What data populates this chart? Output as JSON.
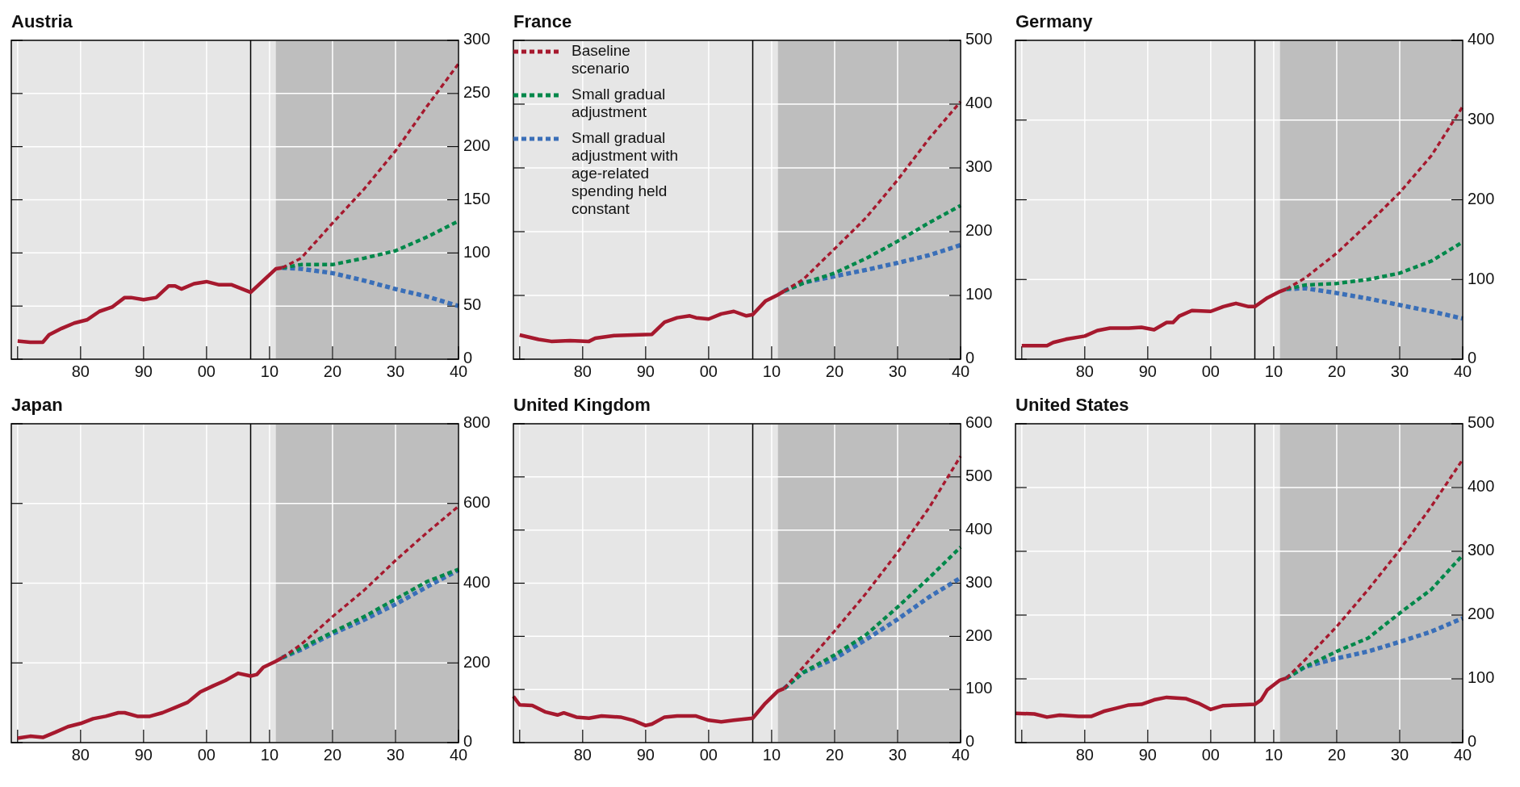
{
  "chart_data": [
    {
      "type": "line",
      "title": "Austria",
      "xlim": [
        1969,
        2040
      ],
      "xticks": [
        {
          "value": 1970,
          "label": null
        },
        {
          "value": 1980,
          "label": "80"
        },
        {
          "value": 1990,
          "label": "90"
        },
        {
          "value": 2000,
          "label": "00"
        },
        {
          "value": 2010,
          "label": "10"
        },
        {
          "value": 2020,
          "label": "20"
        },
        {
          "value": 2030,
          "label": "30"
        },
        {
          "value": 2040,
          "label": "40"
        }
      ],
      "ylim": [
        0,
        300
      ],
      "yticks": [
        0,
        50,
        100,
        150,
        200,
        250,
        300
      ],
      "grid": true,
      "legend": false,
      "bands": [
        {
          "axis": "x",
          "from": 2011,
          "to": 2040,
          "color": "#bebebe"
        }
      ],
      "ref_lines": [
        {
          "axis": "x",
          "value": 2007,
          "color": "#000000"
        }
      ],
      "series": [
        {
          "color": "#a6192e",
          "line_style": "solid",
          "x": [
            1970,
            1972,
            1974,
            1975,
            1977,
            1979,
            1981,
            1983,
            1985,
            1987,
            1988,
            1990,
            1992,
            1994,
            1995,
            1996,
            1998,
            2000,
            2002,
            2004,
            2007,
            2009,
            2011,
            2012
          ],
          "values": [
            17,
            16,
            16,
            23,
            29,
            34,
            37,
            45,
            49,
            58,
            58,
            56,
            58,
            69,
            69,
            66,
            71,
            73,
            70,
            70,
            63,
            74,
            85,
            86
          ]
        },
        {
          "color": "#a6192e",
          "line_style": "dashed",
          "x": [
            2012,
            2015,
            2020,
            2025,
            2030,
            2035,
            2040
          ],
          "values": [
            86,
            95,
            128,
            160,
            196,
            238,
            278
          ]
        },
        {
          "color": "#00884a",
          "line_style": "dashed",
          "x": [
            2012,
            2015,
            2020,
            2025,
            2030,
            2035,
            2040
          ],
          "values": [
            86,
            89,
            89,
            95,
            102,
            115,
            130
          ]
        },
        {
          "color": "#3a6fb8",
          "line_style": "dashed",
          "x": [
            2012,
            2015,
            2020,
            2025,
            2030,
            2035,
            2040
          ],
          "values": [
            86,
            85,
            81,
            74,
            66,
            59,
            50
          ]
        }
      ]
    },
    {
      "type": "line",
      "title": "France",
      "xlim": [
        1969,
        2040
      ],
      "xticks": [
        {
          "value": 1970,
          "label": null
        },
        {
          "value": 1980,
          "label": "80"
        },
        {
          "value": 1990,
          "label": "90"
        },
        {
          "value": 2000,
          "label": "00"
        },
        {
          "value": 2010,
          "label": "10"
        },
        {
          "value": 2020,
          "label": "20"
        },
        {
          "value": 2030,
          "label": "30"
        },
        {
          "value": 2040,
          "label": "40"
        }
      ],
      "ylim": [
        0,
        500
      ],
      "yticks": [
        0,
        100,
        200,
        300,
        400,
        500
      ],
      "grid": true,
      "legend": "top left",
      "bands": [
        {
          "axis": "x",
          "from": 2011,
          "to": 2040,
          "color": "#bebebe"
        }
      ],
      "ref_lines": [
        {
          "axis": "x",
          "value": 2007,
          "color": "#000000"
        }
      ],
      "series": [
        {
          "color": "#a6192e",
          "line_style": "solid",
          "x": [
            1970,
            1973,
            1975,
            1978,
            1981,
            1982,
            1985,
            1988,
            1991,
            1993,
            1995,
            1997,
            1998,
            2000,
            2002,
            2004,
            2006,
            2007,
            2009,
            2011,
            2012
          ],
          "values": [
            38,
            31,
            28,
            29,
            28,
            33,
            37,
            38,
            39,
            58,
            65,
            68,
            65,
            63,
            71,
            75,
            68,
            70,
            91,
            101,
            107
          ]
        },
        {
          "name": "Baseline scenario",
          "color": "#a6192e",
          "line_style": "dashed",
          "x": [
            2012,
            2015,
            2020,
            2025,
            2030,
            2035,
            2040
          ],
          "values": [
            107,
            125,
            173,
            222,
            281,
            346,
            404
          ]
        },
        {
          "name": "Small gradual adjustment",
          "color": "#00884a",
          "line_style": "dashed",
          "x": [
            2012,
            2015,
            2020,
            2025,
            2030,
            2035,
            2040
          ],
          "values": [
            107,
            119,
            135,
            158,
            185,
            214,
            241
          ]
        },
        {
          "name": "Small gradual adjustment with age-related spending held constant",
          "color": "#3a6fb8",
          "line_style": "dashed",
          "x": [
            2012,
            2015,
            2020,
            2025,
            2030,
            2035,
            2040
          ],
          "values": [
            107,
            120,
            130,
            140,
            151,
            163,
            179
          ]
        }
      ]
    },
    {
      "type": "line",
      "title": "Germany",
      "xlim": [
        1969,
        2040
      ],
      "xticks": [
        {
          "value": 1970,
          "label": null
        },
        {
          "value": 1980,
          "label": "80"
        },
        {
          "value": 1990,
          "label": "90"
        },
        {
          "value": 2000,
          "label": "00"
        },
        {
          "value": 2010,
          "label": "10"
        },
        {
          "value": 2020,
          "label": "20"
        },
        {
          "value": 2030,
          "label": "30"
        },
        {
          "value": 2040,
          "label": "40"
        }
      ],
      "ylim": [
        0,
        400
      ],
      "yticks": [
        0,
        100,
        200,
        300,
        400
      ],
      "grid": true,
      "legend": false,
      "bands": [
        {
          "axis": "x",
          "from": 2011,
          "to": 2040,
          "color": "#bebebe"
        }
      ],
      "ref_lines": [
        {
          "axis": "x",
          "value": 2007,
          "color": "#000000"
        }
      ],
      "series": [
        {
          "color": "#a6192e",
          "line_style": "solid",
          "x": [
            1970,
            1973,
            1974,
            1975,
            1977,
            1980,
            1982,
            1984,
            1987,
            1989,
            1991,
            1993,
            1994,
            1995,
            1997,
            2000,
            2002,
            2004,
            2006,
            2007,
            2009,
            2011,
            2012
          ],
          "values": [
            17,
            17,
            17,
            21,
            25,
            29,
            36,
            39,
            39,
            40,
            37,
            46,
            46,
            54,
            61,
            60,
            66,
            70,
            66,
            66,
            77,
            85,
            88
          ]
        },
        {
          "color": "#a6192e",
          "line_style": "dashed",
          "x": [
            2012,
            2015,
            2020,
            2025,
            2030,
            2035,
            2040
          ],
          "values": [
            88,
            102,
            133,
            170,
            209,
            255,
            317
          ]
        },
        {
          "color": "#00884a",
          "line_style": "dashed",
          "x": [
            2012,
            2015,
            2020,
            2025,
            2030,
            2035,
            2040
          ],
          "values": [
            88,
            93,
            95,
            100,
            108,
            123,
            147
          ]
        },
        {
          "color": "#3a6fb8",
          "line_style": "dashed",
          "x": [
            2012,
            2015,
            2020,
            2025,
            2030,
            2035,
            2040
          ],
          "values": [
            88,
            89,
            83,
            76,
            68,
            60,
            51
          ]
        }
      ]
    },
    {
      "type": "line",
      "title": "Japan",
      "xlim": [
        1969,
        2040
      ],
      "xticks": [
        {
          "value": 1970,
          "label": null
        },
        {
          "value": 1980,
          "label": "80"
        },
        {
          "value": 1990,
          "label": "90"
        },
        {
          "value": 2000,
          "label": "00"
        },
        {
          "value": 2010,
          "label": "10"
        },
        {
          "value": 2020,
          "label": "20"
        },
        {
          "value": 2030,
          "label": "30"
        },
        {
          "value": 2040,
          "label": "40"
        }
      ],
      "ylim": [
        0,
        800
      ],
      "yticks": [
        0,
        200,
        400,
        600,
        800
      ],
      "grid": true,
      "legend": false,
      "bands": [
        {
          "axis": "x",
          "from": 2011,
          "to": 2040,
          "color": "#bebebe"
        }
      ],
      "ref_lines": [
        {
          "axis": "x",
          "value": 2007,
          "color": "#000000"
        }
      ],
      "series": [
        {
          "color": "#a6192e",
          "line_style": "solid",
          "x": [
            1970,
            1972,
            1974,
            1976,
            1978,
            1980,
            1982,
            1984,
            1986,
            1987,
            1989,
            1991,
            1993,
            1995,
            1997,
            1999,
            2001,
            2003,
            2005,
            2007,
            2008,
            2009,
            2011,
            2012
          ],
          "values": [
            11,
            16,
            13,
            26,
            40,
            48,
            60,
            66,
            75,
            75,
            66,
            66,
            75,
            88,
            101,
            127,
            142,
            156,
            174,
            167,
            171,
            189,
            204,
            213
          ]
        },
        {
          "color": "#a6192e",
          "line_style": "dashed",
          "x": [
            2012,
            2015,
            2020,
            2025,
            2030,
            2035,
            2040
          ],
          "values": [
            213,
            246,
            316,
            382,
            457,
            527,
            593
          ]
        },
        {
          "color": "#00884a",
          "line_style": "dashed",
          "x": [
            2012,
            2015,
            2020,
            2025,
            2030,
            2035,
            2040
          ],
          "values": [
            213,
            237,
            277,
            316,
            360,
            404,
            435
          ]
        },
        {
          "color": "#3a6fb8",
          "line_style": "dashed",
          "x": [
            2012,
            2015,
            2020,
            2025,
            2030,
            2035,
            2040
          ],
          "values": [
            213,
            233,
            273,
            308,
            347,
            391,
            433
          ]
        }
      ]
    },
    {
      "type": "line",
      "title": "United Kingdom",
      "xlim": [
        1969,
        2040
      ],
      "xticks": [
        {
          "value": 1970,
          "label": null
        },
        {
          "value": 1980,
          "label": "80"
        },
        {
          "value": 1990,
          "label": "90"
        },
        {
          "value": 2000,
          "label": "00"
        },
        {
          "value": 2010,
          "label": "10"
        },
        {
          "value": 2020,
          "label": "20"
        },
        {
          "value": 2030,
          "label": "30"
        },
        {
          "value": 2040,
          "label": "40"
        }
      ],
      "ylim": [
        0,
        600
      ],
      "yticks": [
        0,
        100,
        200,
        300,
        400,
        500,
        600
      ],
      "grid": true,
      "legend": false,
      "bands": [
        {
          "axis": "x",
          "from": 2011,
          "to": 2040,
          "color": "#bebebe"
        }
      ],
      "ref_lines": [
        {
          "axis": "x",
          "value": 2007,
          "color": "#000000"
        }
      ],
      "series": [
        {
          "color": "#a6192e",
          "line_style": "solid",
          "x": [
            1969,
            1970,
            1972,
            1974,
            1976,
            1977,
            1979,
            1981,
            1983,
            1986,
            1988,
            1990,
            1991,
            1993,
            1995,
            1998,
            2000,
            2002,
            2004,
            2007,
            2009,
            2011,
            2012
          ],
          "values": [
            87,
            71,
            70,
            58,
            52,
            56,
            48,
            46,
            50,
            48,
            42,
            32,
            35,
            48,
            50,
            50,
            42,
            39,
            42,
            46,
            74,
            97,
            102
          ]
        },
        {
          "color": "#a6192e",
          "line_style": "dashed",
          "x": [
            2012,
            2015,
            2020,
            2025,
            2030,
            2035,
            2040
          ],
          "values": [
            102,
            142,
            210,
            281,
            358,
            442,
            539
          ]
        },
        {
          "color": "#00884a",
          "line_style": "dashed",
          "x": [
            2012,
            2015,
            2020,
            2025,
            2030,
            2035,
            2040
          ],
          "values": [
            102,
            132,
            165,
            203,
            255,
            310,
            368
          ]
        },
        {
          "color": "#3a6fb8",
          "line_style": "dashed",
          "x": [
            2012,
            2015,
            2020,
            2025,
            2030,
            2035,
            2040
          ],
          "values": [
            102,
            132,
            158,
            194,
            232,
            274,
            310
          ]
        }
      ]
    },
    {
      "type": "line",
      "title": "United States",
      "xlim": [
        1969,
        2040
      ],
      "xticks": [
        {
          "value": 1970,
          "label": null
        },
        {
          "value": 1980,
          "label": "80"
        },
        {
          "value": 1990,
          "label": "90"
        },
        {
          "value": 2000,
          "label": "00"
        },
        {
          "value": 2010,
          "label": "10"
        },
        {
          "value": 2020,
          "label": "20"
        },
        {
          "value": 2030,
          "label": "30"
        },
        {
          "value": 2040,
          "label": "40"
        }
      ],
      "ylim": [
        0,
        500
      ],
      "yticks": [
        0,
        100,
        200,
        300,
        400,
        500
      ],
      "grid": true,
      "legend": false,
      "bands": [
        {
          "axis": "x",
          "from": 2011,
          "to": 2040,
          "color": "#bebebe"
        }
      ],
      "ref_lines": [
        {
          "axis": "x",
          "value": 2007,
          "color": "#000000"
        }
      ],
      "series": [
        {
          "color": "#a6192e",
          "line_style": "solid",
          "x": [
            1969,
            1972,
            1974,
            1976,
            1979,
            1981,
            1983,
            1985,
            1987,
            1989,
            1991,
            1993,
            1996,
            1998,
            2000,
            2002,
            2004,
            2007,
            2008,
            2009,
            2011,
            2012
          ],
          "values": [
            46,
            45,
            40,
            43,
            41,
            41,
            49,
            54,
            59,
            60,
            67,
            71,
            69,
            62,
            52,
            58,
            59,
            60,
            67,
            83,
            98,
            101
          ]
        },
        {
          "color": "#a6192e",
          "line_style": "dashed",
          "x": [
            2012,
            2015,
            2020,
            2025,
            2030,
            2035,
            2040
          ],
          "values": [
            101,
            130,
            182,
            240,
            302,
            370,
            444
          ]
        },
        {
          "color": "#00884a",
          "line_style": "dashed",
          "x": [
            2012,
            2015,
            2020,
            2025,
            2030,
            2035,
            2040
          ],
          "values": [
            101,
            119,
            143,
            164,
            203,
            240,
            294
          ]
        },
        {
          "color": "#3a6fb8",
          "line_style": "dashed",
          "x": [
            2012,
            2015,
            2020,
            2025,
            2030,
            2035,
            2040
          ],
          "values": [
            101,
            119,
            132,
            143,
            158,
            174,
            195
          ]
        }
      ]
    }
  ]
}
